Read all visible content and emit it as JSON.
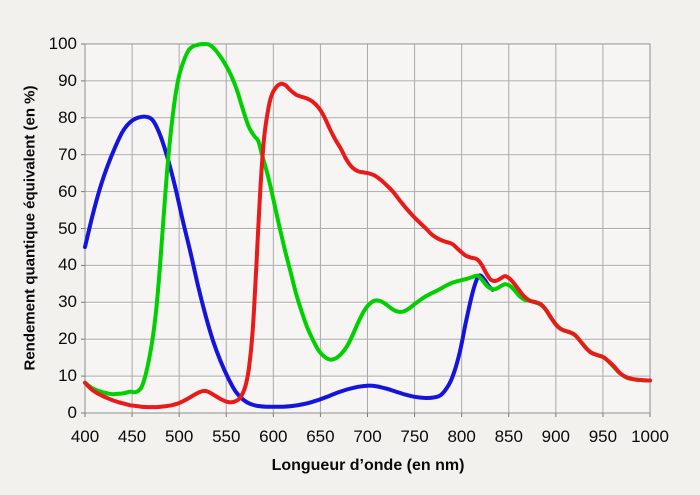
{
  "chart_data": {
    "type": "line",
    "title": "",
    "xlabel": "Longueur d’onde (en nm)",
    "ylabel": "Rendement quantique équivalent (en %)",
    "xlim": [
      400,
      1000
    ],
    "ylim": [
      0,
      100
    ],
    "xticks": [
      400,
      450,
      500,
      550,
      600,
      650,
      700,
      750,
      800,
      850,
      900,
      950,
      1000
    ],
    "yticks": [
      0,
      10,
      20,
      30,
      40,
      50,
      60,
      70,
      80,
      90,
      100
    ],
    "grid": true,
    "legend": "none",
    "series": [
      {
        "name": "blue-channel",
        "color": "#1414dd",
        "x": [
          400,
          408,
          416,
          424,
          432,
          440,
          448,
          456,
          464,
          472,
          480,
          488,
          496,
          504,
          512,
          520,
          528,
          536,
          544,
          552,
          560,
          568,
          576,
          584,
          592,
          600,
          610,
          620,
          630,
          640,
          650,
          660,
          670,
          680,
          690,
          700,
          710,
          720,
          730,
          740,
          750,
          760,
          770,
          778,
          786,
          792,
          798,
          804,
          810,
          815,
          819,
          824,
          829,
          833
        ],
        "y": [
          45,
          53.5,
          61,
          67,
          72,
          76.3,
          78.8,
          80,
          80.3,
          79.3,
          75.2,
          68.8,
          61,
          52,
          43.5,
          34.5,
          26.5,
          19.5,
          14,
          9.5,
          5.8,
          3.6,
          2.4,
          1.9,
          1.7,
          1.7,
          1.7,
          1.9,
          2.3,
          2.9,
          3.7,
          4.7,
          5.7,
          6.5,
          7.1,
          7.4,
          7.2,
          6.6,
          5.8,
          5,
          4.4,
          4.1,
          4.2,
          4.9,
          7.5,
          11,
          16.5,
          24,
          31,
          35.5,
          37.3,
          36.2,
          34.3,
          33.4
        ]
      },
      {
        "name": "green-channel",
        "color": "#00d000",
        "x": [
          400,
          406,
          412,
          418,
          424,
          430,
          436,
          442,
          448,
          452,
          456,
          460,
          464,
          468,
          472,
          476,
          480,
          484,
          488,
          492,
          496,
          500,
          505,
          510,
          515,
          520,
          526,
          532,
          538,
          544,
          550,
          556,
          562,
          568,
          574,
          580,
          584,
          588,
          594,
          600,
          606,
          612,
          618,
          624,
          630,
          636,
          642,
          648,
          654,
          660,
          666,
          672,
          678,
          684,
          690,
          696,
          702,
          708,
          714,
          720,
          726,
          732,
          738,
          744,
          750,
          758,
          766,
          774,
          782,
          790,
          798,
          806,
          812,
          817,
          822,
          827,
          832,
          836,
          841,
          846,
          851,
          856,
          861,
          866,
          872,
          880,
          888,
          896,
          904,
          912,
          920,
          928,
          936,
          944,
          952,
          960,
          968,
          976,
          984,
          992,
          1000
        ],
        "y": [
          8.2,
          7,
          6.2,
          5.7,
          5.3,
          5.1,
          5.2,
          5.4,
          5.8,
          5.6,
          5.9,
          7,
          10,
          14.5,
          20.5,
          29,
          41,
          55,
          68,
          78,
          86,
          91.5,
          95.5,
          98.3,
          99.4,
          99.8,
          100,
          99.8,
          98.5,
          96.5,
          94,
          91,
          87,
          82,
          77.5,
          75,
          73.7,
          70,
          64.5,
          58,
          51,
          44.5,
          38.5,
          32.5,
          27.5,
          23.2,
          19.8,
          17,
          15.3,
          14.5,
          14.8,
          16,
          18,
          21,
          24.5,
          27.5,
          29.5,
          30.5,
          30.3,
          29.4,
          28.2,
          27.5,
          27.5,
          28.3,
          29.5,
          31,
          32.2,
          33.2,
          34.3,
          35.3,
          35.9,
          36.4,
          36.9,
          37.2,
          36,
          34.4,
          33.6,
          33.6,
          34.3,
          34.9,
          34.5,
          33.3,
          31.8,
          30.8,
          30.4,
          29.9,
          28.4,
          25.4,
          23,
          22.1,
          21.2,
          18.9,
          16.6,
          15.7,
          14.9,
          12.9,
          10.8,
          9.5,
          9.1,
          8.9,
          8.8
        ]
      },
      {
        "name": "red-channel",
        "color": "#e81a1a",
        "x": [
          400,
          406,
          412,
          418,
          424,
          430,
          436,
          442,
          448,
          454,
          460,
          468,
          476,
          484,
          492,
          500,
          508,
          516,
          522,
          527,
          532,
          538,
          544,
          550,
          555,
          560,
          565,
          570,
          574,
          578,
          582,
          586,
          590,
          594,
          598,
          603,
          608,
          613,
          618,
          624,
          630,
          636,
          642,
          648,
          654,
          660,
          666,
          672,
          678,
          684,
          690,
          696,
          702,
          708,
          714,
          720,
          727,
          734,
          741,
          748,
          755,
          762,
          769,
          776,
          783,
          790,
          797,
          804,
          810,
          816,
          821,
          826,
          831,
          836,
          841,
          846,
          851,
          856,
          861,
          866,
          872,
          878,
          884,
          890,
          896,
          902,
          908,
          914,
          920,
          926,
          932,
          938,
          944,
          950,
          956,
          962,
          968,
          974,
          980,
          986,
          993,
          1000
        ],
        "y": [
          8.2,
          6.6,
          5.5,
          4.7,
          4,
          3.4,
          2.9,
          2.5,
          2.1,
          1.9,
          1.7,
          1.6,
          1.6,
          1.8,
          2.1,
          2.7,
          3.7,
          4.9,
          5.7,
          6,
          5.6,
          4.7,
          3.8,
          3.1,
          2.9,
          3.2,
          4.2,
          7,
          12,
          22,
          40,
          60,
          74,
          81.5,
          86,
          88.3,
          89.2,
          88.8,
          87.5,
          86.3,
          85.7,
          85.2,
          84.3,
          82.8,
          80.3,
          77,
          74,
          71.5,
          68.5,
          66.5,
          65.5,
          65.2,
          64.9,
          64.3,
          63.2,
          61.8,
          60,
          57.7,
          55.5,
          53.5,
          51.7,
          50,
          48.2,
          47.1,
          46.4,
          45.8,
          44.2,
          42.7,
          42.1,
          41.7,
          40.3,
          37.9,
          36.1,
          35.8,
          36.4,
          37.1,
          36.4,
          35,
          33.3,
          31.7,
          30.5,
          30,
          29.5,
          27.8,
          25.4,
          23.4,
          22.4,
          22,
          21.2,
          19.5,
          17.6,
          16.3,
          15.7,
          15.2,
          14,
          12.6,
          10.8,
          9.8,
          9.3,
          9,
          8.9,
          8.8
        ]
      }
    ]
  },
  "colors": {
    "background": "#f2f1ee",
    "plot_background": "#f6f5f3",
    "grid": "#aaaaaa",
    "grid_highlight": "#ffffff",
    "axis_border": "#8f8f8f",
    "tick": "#777777",
    "text": "#0a0a0a"
  }
}
